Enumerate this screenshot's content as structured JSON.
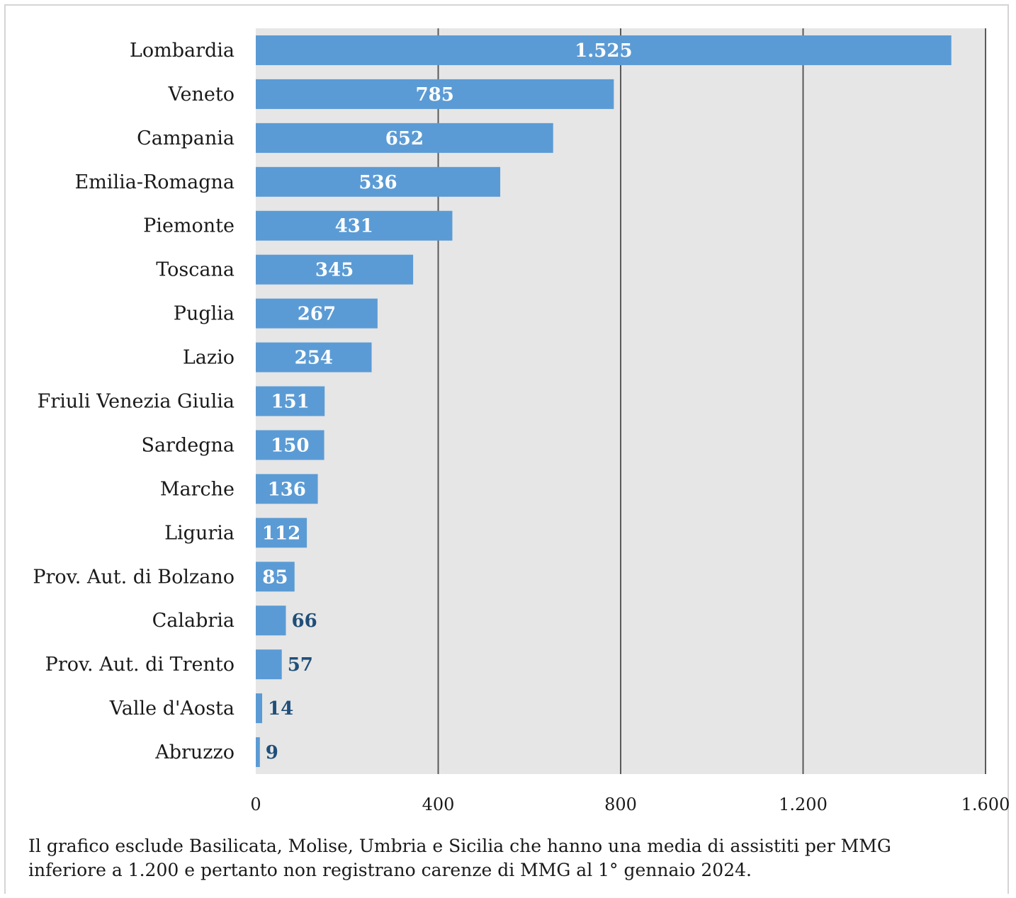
{
  "chart_data": {
    "type": "bar",
    "orientation": "horizontal",
    "categories": [
      "Lombardia",
      "Veneto",
      "Campania",
      "Emilia-Romagna",
      "Piemonte",
      "Toscana",
      "Puglia",
      "Lazio",
      "Friuli Venezia Giulia",
      "Sardegna",
      "Marche",
      "Liguria",
      "Prov. Aut. di Bolzano",
      "Calabria",
      "Prov. Aut. di Trento",
      "Valle d'Aosta",
      "Abruzzo"
    ],
    "values": [
      1525,
      785,
      652,
      536,
      431,
      345,
      267,
      254,
      151,
      150,
      136,
      112,
      85,
      66,
      57,
      14,
      9
    ],
    "value_labels": [
      "1.525",
      "785",
      "652",
      "536",
      "431",
      "345",
      "267",
      "254",
      "151",
      "150",
      "136",
      "112",
      "85",
      "66",
      "57",
      "14",
      "9"
    ],
    "xlim": [
      0,
      1600
    ],
    "xticks": [
      0,
      400,
      800,
      1200,
      1600
    ],
    "xtick_labels": [
      "0",
      "400",
      "800",
      "1.200",
      "1.600"
    ],
    "grid": "vertical",
    "legend": "none",
    "title": "",
    "xlabel": "",
    "ylabel": "",
    "colors": {
      "bar": "#5b9bd5",
      "plot_background": "#e6e6e6",
      "gridline": "#595959",
      "label_inside": "#ffffff",
      "label_outside": "#1f4e79"
    }
  },
  "note": {
    "line1": "Il grafico esclude Basilicata, Molise, Umbria e Sicilia che hanno una media di assistiti per MMG",
    "line2": "inferiore a 1.200 e pertanto non registrano carenze di MMG al 1° gennaio 2024."
  }
}
